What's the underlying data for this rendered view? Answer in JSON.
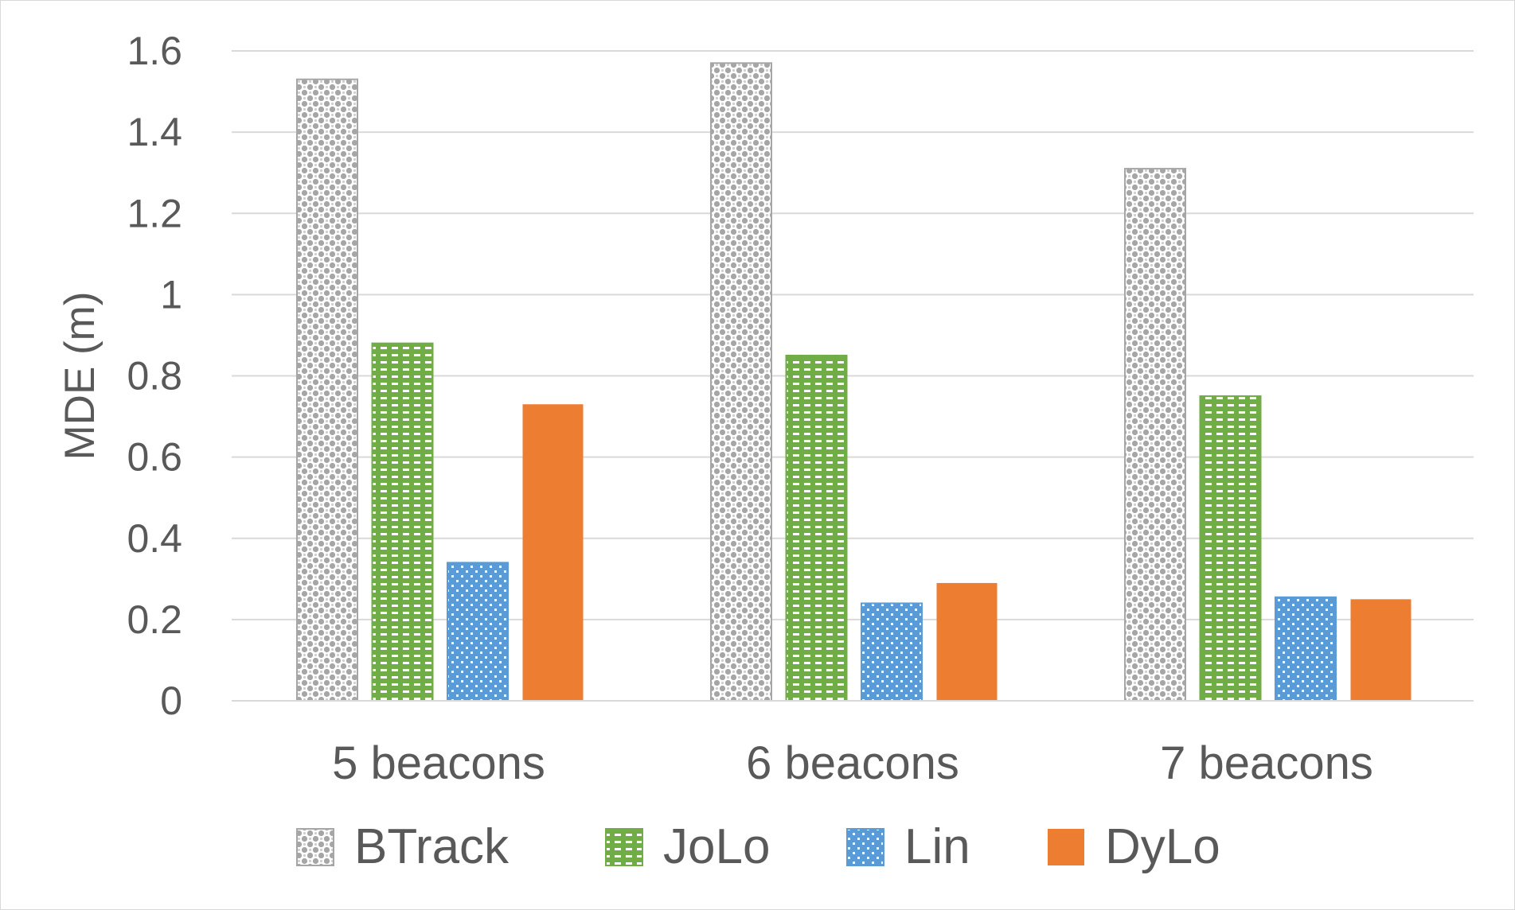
{
  "chart_data": {
    "type": "bar",
    "categories": [
      "5 beacons",
      "6 beacons",
      "7 beacons"
    ],
    "series": [
      {
        "name": "BTrack",
        "values": [
          1.53,
          1.57,
          1.31
        ],
        "color": "#a6a6a6",
        "pattern": "checker"
      },
      {
        "name": "JoLo",
        "values": [
          0.88,
          0.85,
          0.75
        ],
        "color": "#70ad47",
        "pattern": "dashed-horizontal"
      },
      {
        "name": "Lin",
        "values": [
          0.34,
          0.24,
          0.255
        ],
        "color": "#5b9bd5",
        "pattern": "dotted"
      },
      {
        "name": "DyLo",
        "values": [
          0.73,
          0.29,
          0.25
        ],
        "color": "#ed7d31",
        "pattern": "solid"
      }
    ],
    "title": "",
    "xlabel": "",
    "ylabel": "MDE (m)",
    "ylim": [
      0,
      1.6
    ],
    "yticks": [
      "0",
      "0.2",
      "0.4",
      "0.6",
      "0.8",
      "1",
      "1.2",
      "1.4",
      "1.6"
    ],
    "grid": true,
    "legend_position": "bottom"
  }
}
